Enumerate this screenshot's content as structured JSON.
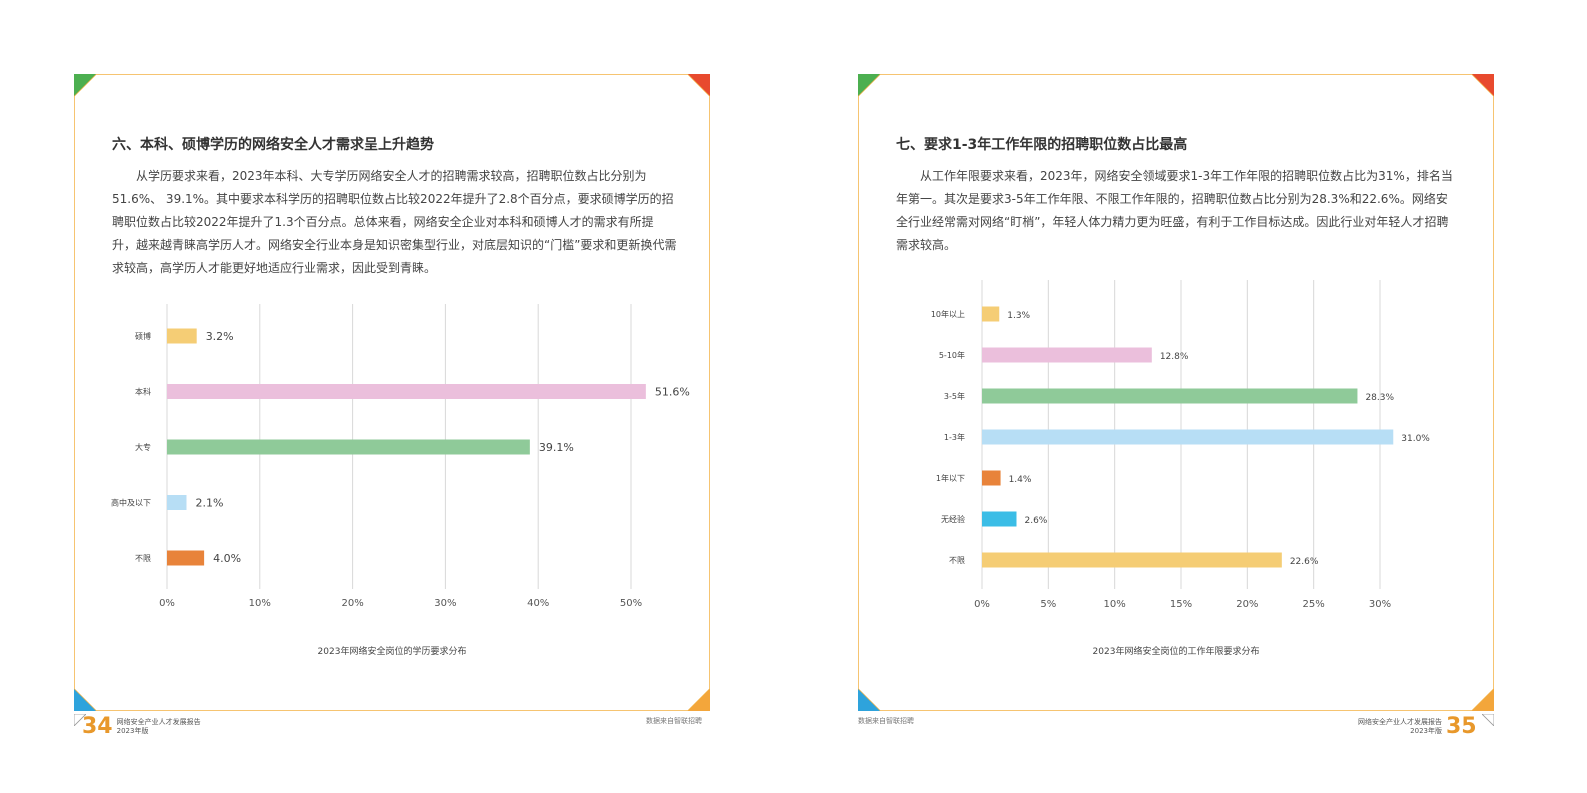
{
  "left": {
    "title": "六、本科、硕博学历的网络安全人才需求呈上升趋势",
    "paragraph": "从学历要求来看，2023年本科、大专学历网络安全人才的招聘需求较高，招聘职位数占比分别为51.6%、 39.1%。其中要求本科学历的招聘职位数占比较2022年提升了2.8个百分点，要求硕博学历的招聘职位数占比较2022年提升了1.3个百分点。总体来看，网络安全企业对本科和硕博人才的需求有所提升，越来越青睐高学历人才。网络安全行业本身是知识密集型行业，对底层知识的“门槛”要求和更新换代需求较高，高学历人才能更好地适应行业需求，因此受到青睐。",
    "chart_data": {
      "type": "bar",
      "orientation": "horizontal",
      "categories": [
        "硕博",
        "本科",
        "大专",
        "高中及以下",
        "不限"
      ],
      "values": [
        3.2,
        51.6,
        39.1,
        2.1,
        4.0
      ],
      "value_labels": [
        "3.2%",
        "51.6%",
        "39.1%",
        "2.1%",
        "4.0%"
      ],
      "colors": [
        "#f5cd75",
        "#ebbfdc",
        "#8fca99",
        "#b7def5",
        "#e8833a"
      ],
      "xlim": [
        0,
        50
      ],
      "ticks": [
        0,
        10,
        20,
        30,
        40,
        50
      ],
      "tick_labels": [
        "0%",
        "10%",
        "20%",
        "30%",
        "40%",
        "50%"
      ],
      "grid": true,
      "title": "2023年网络安全岗位的学历要求分布"
    }
  },
  "right": {
    "title": "七、要求1-3年工作年限的招聘职位数占比最高",
    "paragraph": "从工作年限要求来看，2023年，网络安全领域要求1-3年工作年限的招聘职位数占比为31%，排名当年第一。其次是要求3-5年工作年限、不限工作年限的，招聘职位数占比分别为28.3%和22.6%。网络安全行业经常需对网络“盯梢”，年轻人体力精力更为旺盛，有利于工作目标达成。因此行业对年轻人才招聘需求较高。",
    "chart_data": {
      "type": "bar",
      "orientation": "horizontal",
      "categories": [
        "10年以上",
        "5-10年",
        "3-5年",
        "1-3年",
        "1年以下",
        "无经验",
        "不限"
      ],
      "values": [
        1.3,
        12.8,
        28.3,
        31.0,
        1.4,
        2.6,
        22.6
      ],
      "value_labels": [
        "1.3%",
        "12.8%",
        "28.3%",
        "31.0%",
        "1.4%",
        "2.6%",
        "22.6%"
      ],
      "colors": [
        "#f5cd75",
        "#ebbfdc",
        "#8fca99",
        "#b7def5",
        "#e8833a",
        "#3bbde6",
        "#f5cd75"
      ],
      "xlim": [
        0,
        30
      ],
      "ticks": [
        0,
        5,
        10,
        15,
        20,
        25,
        30
      ],
      "tick_labels": [
        "0%",
        "5%",
        "10%",
        "15%",
        "20%",
        "25%",
        "30%"
      ],
      "grid": true,
      "title": "2023年网络安全岗位的工作年限要求分布"
    }
  },
  "footer": {
    "left_page": "34",
    "right_page": "35",
    "report_name": "网络安全产业人才发展报告",
    "edition": "2023年版",
    "source": "数据来自智联招聘"
  },
  "colors": {
    "frame": "#f3b042",
    "corner_green": "#4caf50",
    "corner_red": "#e84a2e",
    "corner_blue": "#2ea3dc",
    "corner_orange": "#f3a63b",
    "grid": "#d8d8d8"
  }
}
